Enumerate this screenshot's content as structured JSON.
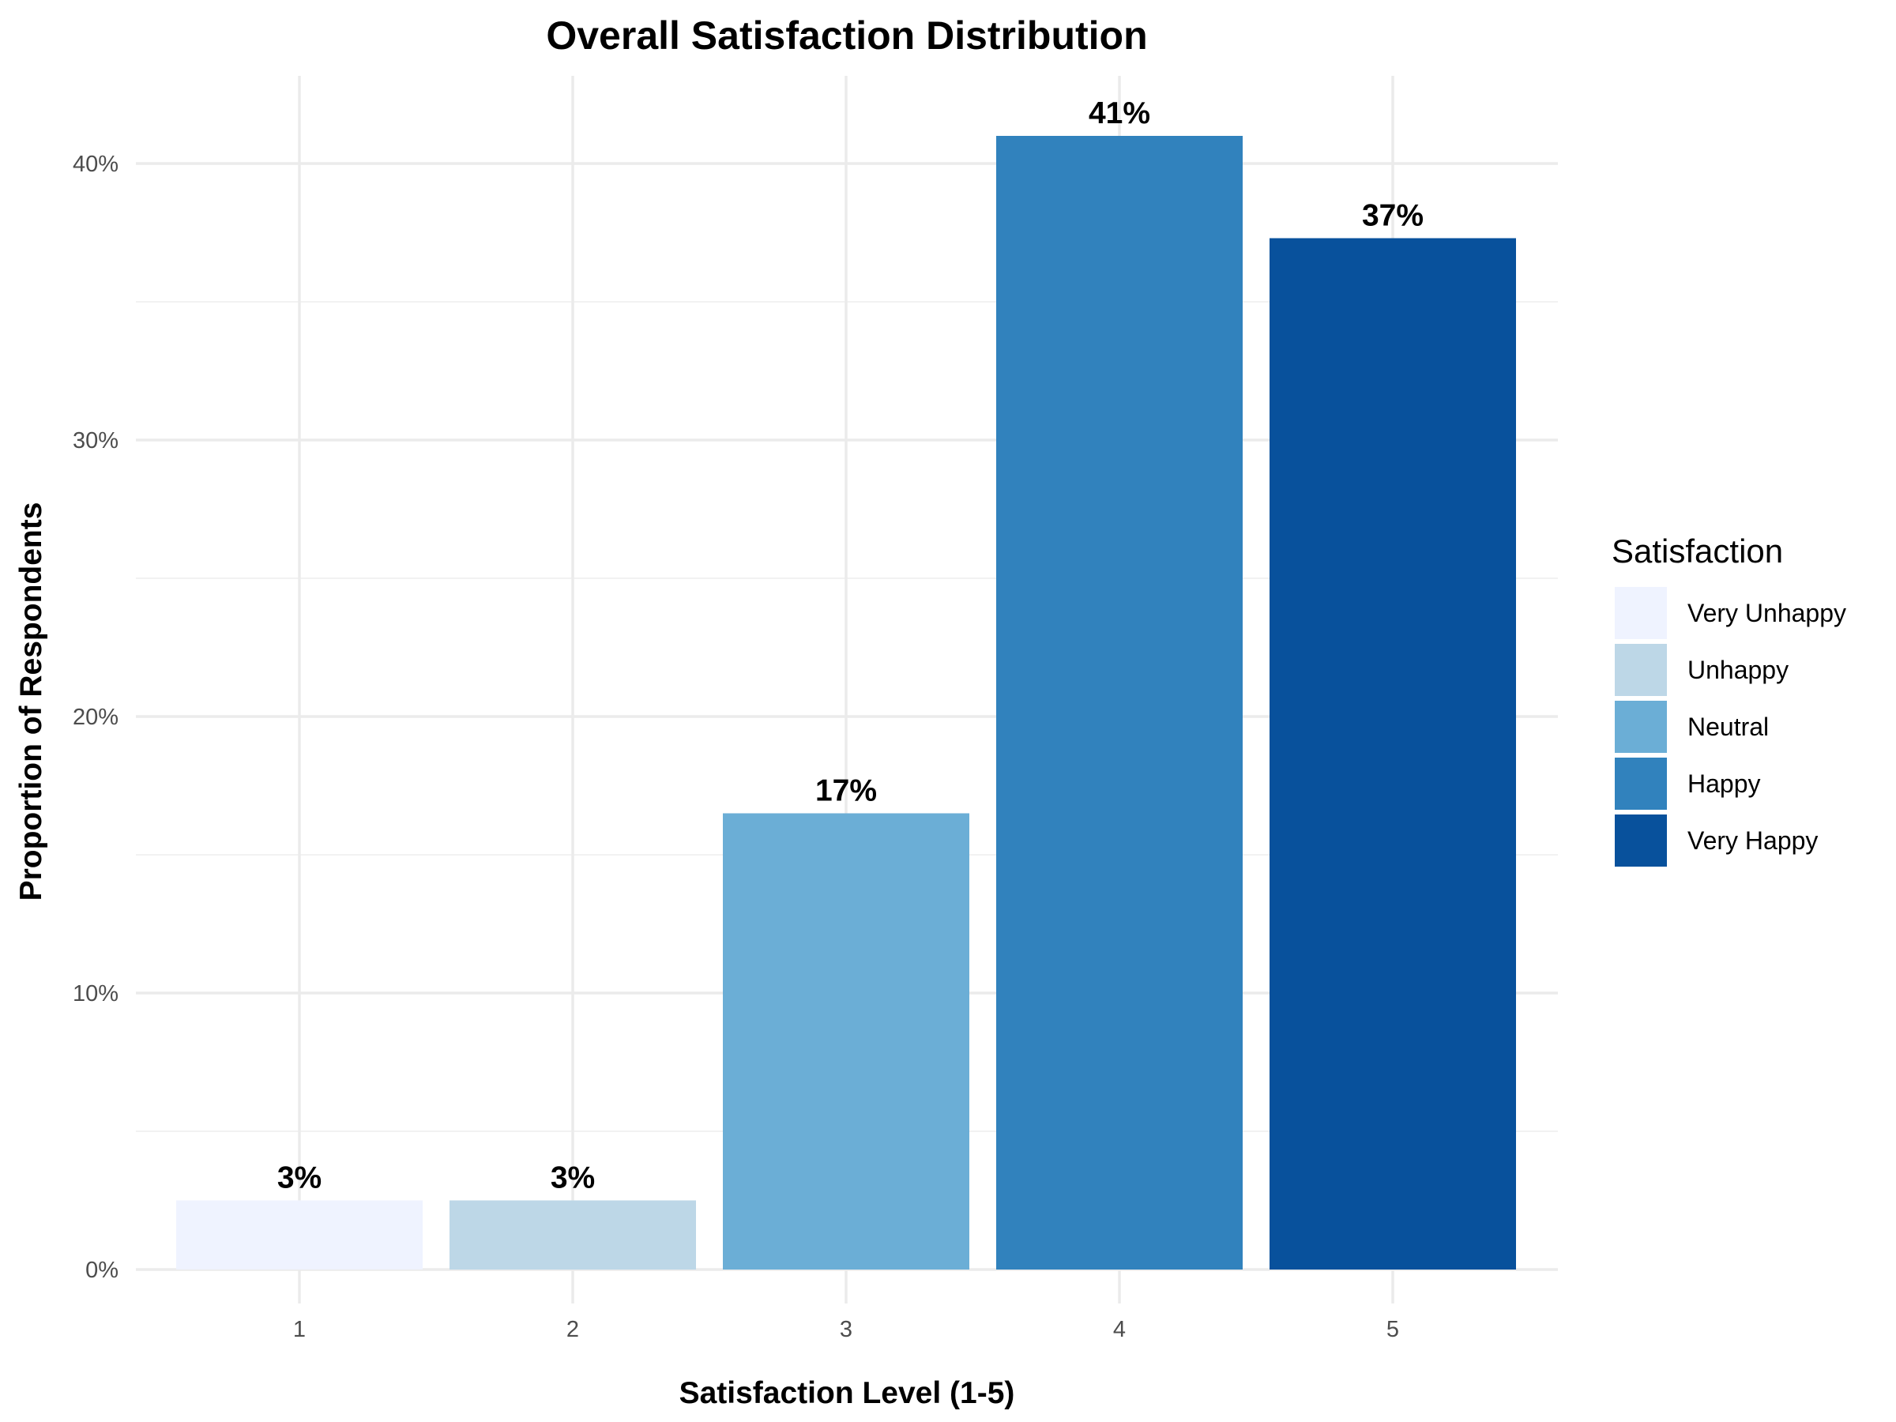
{
  "chart_data": {
    "type": "bar",
    "title": "Overall Satisfaction Distribution",
    "xlabel": "Satisfaction Level (1-5)",
    "ylabel": "Proportion of Respondents",
    "categories": [
      "1",
      "2",
      "3",
      "4",
      "5"
    ],
    "values": [
      0.025,
      0.025,
      0.165,
      0.41,
      0.373
    ],
    "data_labels": [
      "3%",
      "3%",
      "17%",
      "41%",
      "37%"
    ],
    "ylim": [
      0,
      0.44
    ],
    "yticks": [
      0,
      0.1,
      0.2,
      0.3,
      0.4
    ],
    "ytick_labels": [
      "0%",
      "10%",
      "20%",
      "30%",
      "40%"
    ],
    "grid": true,
    "legend": {
      "title": "Satisfaction",
      "placement": "right",
      "entries": [
        "Very Unhappy",
        "Unhappy",
        "Neutral",
        "Happy",
        "Very Happy"
      ]
    },
    "colors": [
      "#eff3ff",
      "#bdd7e7",
      "#6baed6",
      "#3182bd",
      "#08519c"
    ]
  }
}
